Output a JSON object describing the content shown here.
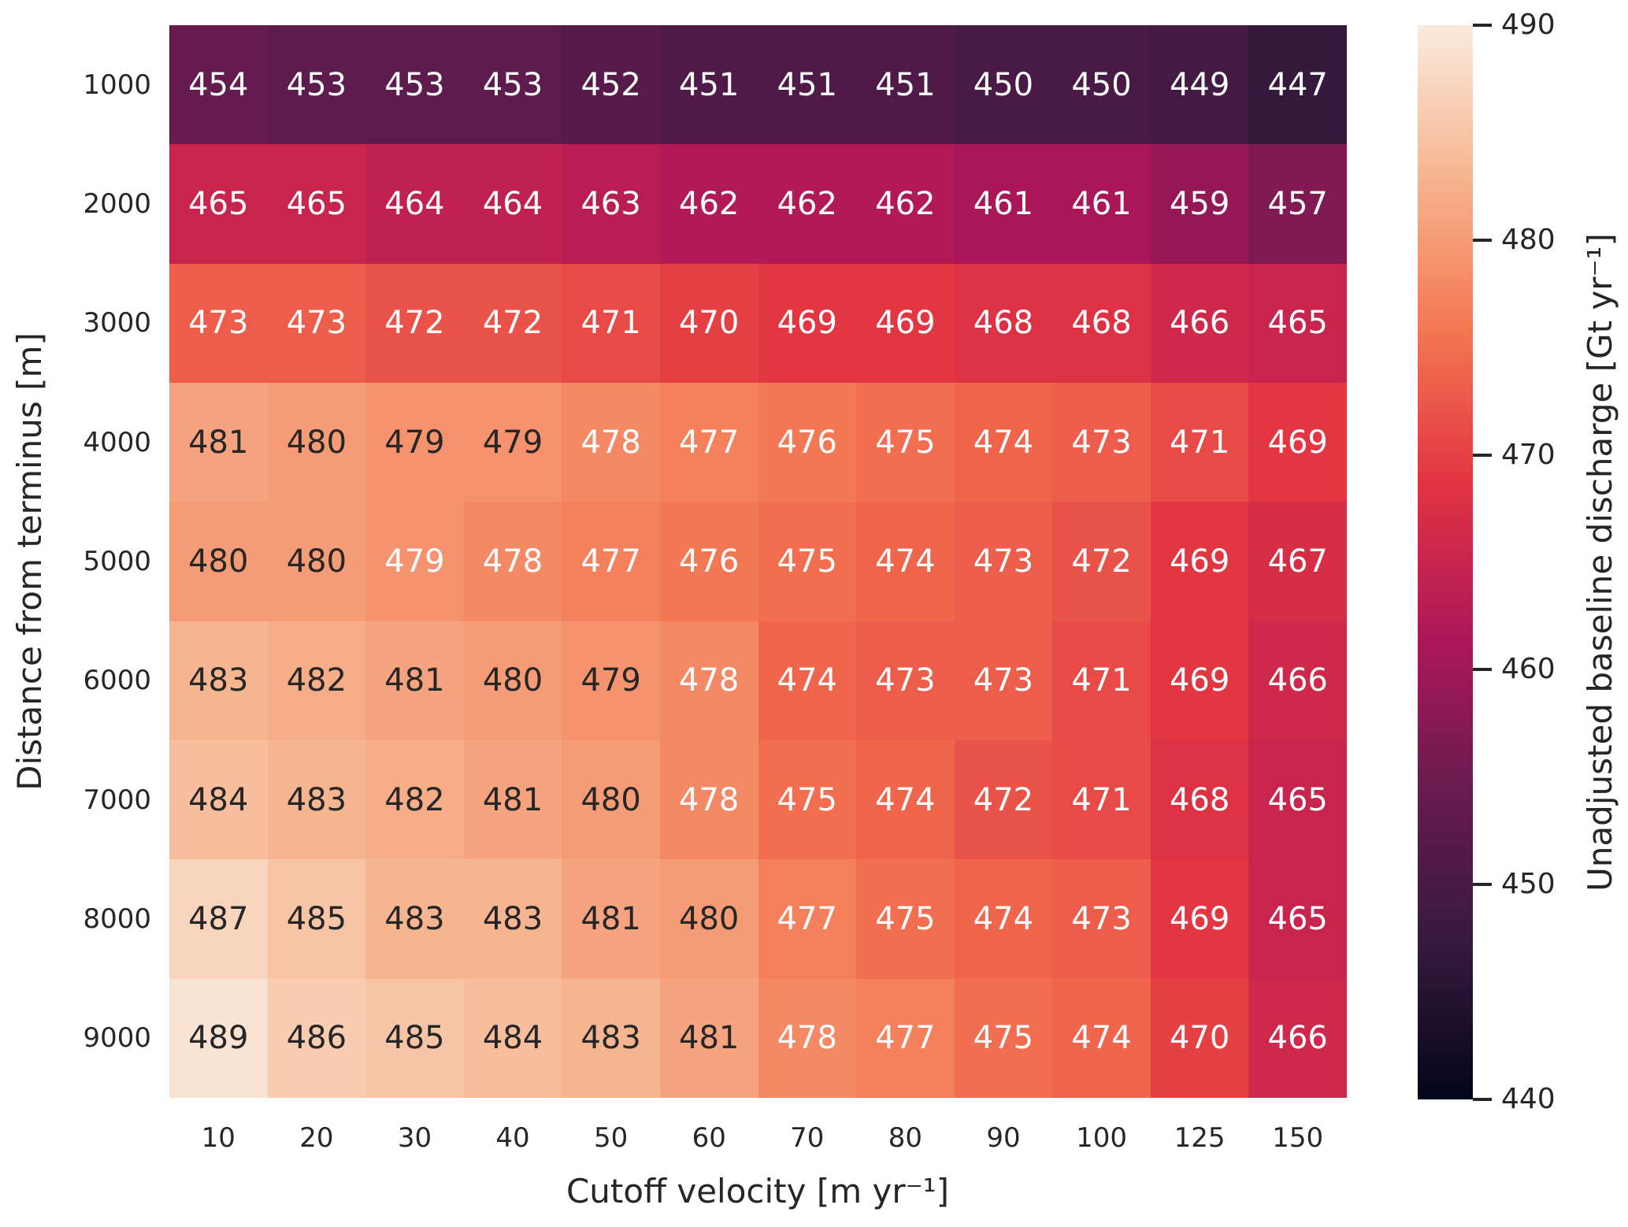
{
  "chart_data": {
    "type": "heatmap",
    "xlabel": "Cutoff velocity [m yr⁻¹]",
    "ylabel": "Distance from terminus [m]",
    "colorbar_label": "Unadjusted baseline discharge [Gt yr⁻¹]",
    "x_ticks": [
      "10",
      "20",
      "30",
      "40",
      "50",
      "60",
      "70",
      "80",
      "90",
      "100",
      "125",
      "150"
    ],
    "y_ticks": [
      "1000",
      "2000",
      "3000",
      "4000",
      "5000",
      "6000",
      "7000",
      "8000",
      "9000"
    ],
    "colorbar_ticks": [
      "490",
      "480",
      "470",
      "460",
      "450",
      "440"
    ],
    "vmin": 440,
    "vmax": 490,
    "values": [
      [
        454,
        453,
        453,
        453,
        452,
        451,
        451,
        451,
        450,
        450,
        449,
        447
      ],
      [
        465,
        465,
        464,
        464,
        463,
        462,
        462,
        462,
        461,
        461,
        459,
        457
      ],
      [
        473,
        473,
        472,
        472,
        471,
        470,
        469,
        469,
        468,
        468,
        466,
        465
      ],
      [
        481,
        480,
        479,
        479,
        478,
        477,
        476,
        475,
        474,
        473,
        471,
        469
      ],
      [
        480,
        480,
        479,
        478,
        477,
        476,
        475,
        474,
        473,
        472,
        469,
        467
      ],
      [
        483,
        482,
        481,
        480,
        479,
        478,
        474,
        473,
        473,
        471,
        469,
        466
      ],
      [
        484,
        483,
        482,
        481,
        480,
        478,
        475,
        474,
        472,
        471,
        468,
        465
      ],
      [
        487,
        485,
        483,
        483,
        481,
        480,
        477,
        475,
        474,
        473,
        469,
        465
      ],
      [
        489,
        486,
        485,
        484,
        483,
        481,
        478,
        477,
        475,
        474,
        470,
        466
      ]
    ],
    "annot_dark_leading": [
      0,
      0,
      0,
      4,
      2,
      5,
      5,
      6,
      6
    ],
    "annot_dark_color": "#262626",
    "annot_light_color": "#ffffff",
    "axis_text_color": "#262626",
    "colormap": {
      "name": "rocket",
      "stops": [
        {
          "t": 0.0,
          "c": "#03051A"
        },
        {
          "t": 0.143,
          "c": "#35193E"
        },
        {
          "t": 0.286,
          "c": "#671B50"
        },
        {
          "t": 0.429,
          "c": "#AD1759"
        },
        {
          "t": 0.571,
          "c": "#E13342"
        },
        {
          "t": 0.714,
          "c": "#F37651"
        },
        {
          "t": 0.857,
          "c": "#F6B48F"
        },
        {
          "t": 1.0,
          "c": "#FAEBDD"
        }
      ]
    },
    "grid": false,
    "legend": "colorbar-right"
  }
}
